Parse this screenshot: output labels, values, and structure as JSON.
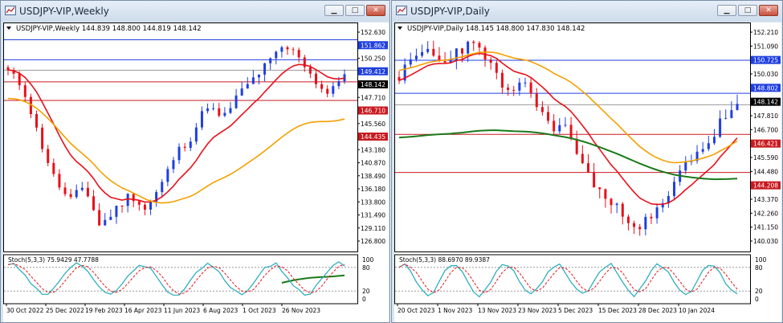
{
  "left": {
    "window_title": "USDJPY-VIP,Weekly",
    "info": "USDJPY-VIP,Weekly  144.839 148.800 144.819 148.142",
    "price_labels": [
      "152.630",
      "151.862",
      "150.250",
      "149.412",
      "148.142",
      "147.710",
      "146.710",
      "145.560",
      "144.435",
      "143.180",
      "140.870",
      "138.490",
      "136.180",
      "133.800",
      "131.490",
      "129.110",
      "126.800"
    ],
    "stoch_label": "Stoch(5,3,3) 75.9429 47.7788",
    "stoch_levels": [
      "100",
      "80",
      "20",
      "0"
    ],
    "dates": [
      "30 Oct 2022",
      "25 Dec 2022",
      "19 Feb 2023",
      "16 Apr 2023",
      "11 Jun 2023",
      "6 Aug 2023",
      "1 Oct 2023",
      "26 Nov 2023"
    ]
  },
  "right": {
    "window_title": "USDJPY-VIP,Daily",
    "info": "USDJPY-VIP,Daily  148.145 148.800 147.830 148.142",
    "price_labels": [
      "152.210",
      "151.090",
      "150.725",
      "150.030",
      "148.802",
      "148.142",
      "147.810",
      "146.700",
      "146.421",
      "145.590",
      "144.480",
      "144.208",
      "143.370",
      "142.260",
      "141.150",
      "140.030"
    ],
    "stoch_label": "Stoch(5,3,3) 88.6970 89.9387",
    "stoch_levels": [
      "100",
      "80",
      "20",
      "0"
    ],
    "dates": [
      "20 Oct 2023",
      "1 Nov 2023",
      "13 Nov 2023",
      "23 Nov 2023",
      "5 Dec 2023",
      "15 Dec 2023",
      "28 Dec 2023",
      "10 Jan 2024"
    ]
  },
  "colors": {
    "bull": "#1f3fe0",
    "bear": "#e8101a",
    "ema_red": "#e8101a",
    "ema_orange": "#f4a000",
    "ema_green": "#1a7a1a",
    "stoch_main": "#22aab8",
    "stoch_signal": "#e8101a",
    "blue_line": "#1f3fe0",
    "red_line": "#c81a20",
    "current": "#000000"
  }
}
